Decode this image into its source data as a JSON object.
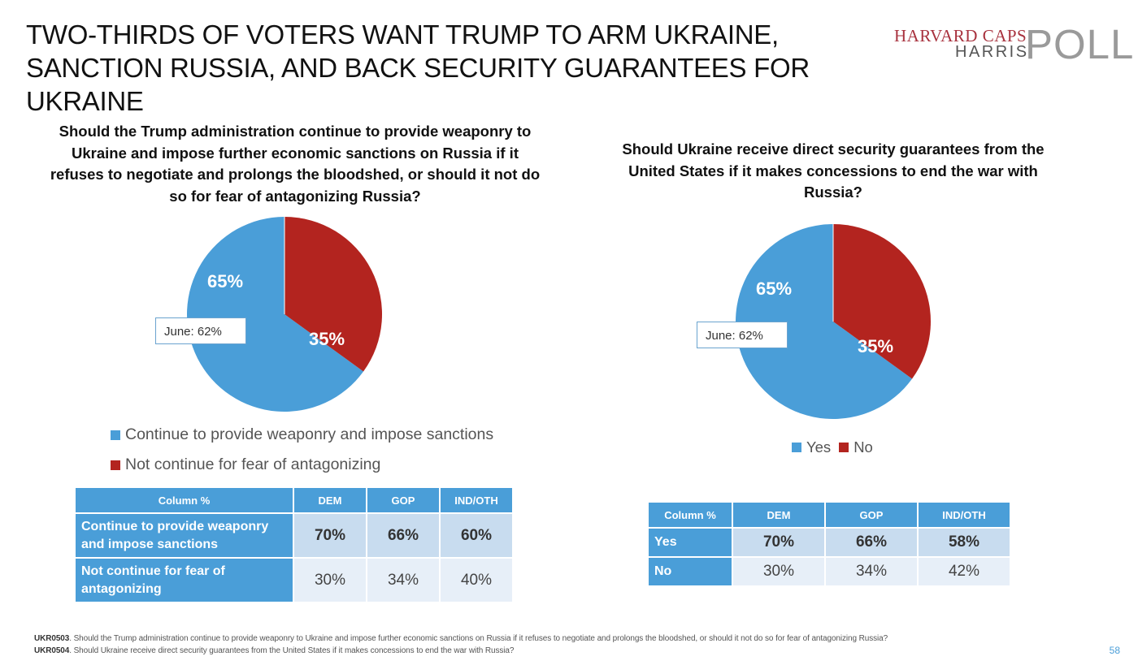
{
  "title": "TWO-THIRDS OF VOTERS WANT TRUMP TO ARM UKRAINE, SANCTION RUSSIA, AND BACK SECURITY GUARANTEES FOR UKRAINE",
  "logo": {
    "line1": "HARVARD CAPS",
    "line2": "HARRIS",
    "line3": "POLL"
  },
  "colors": {
    "blue": "#4a9ed8",
    "red": "#b3241f"
  },
  "chart_data": [
    {
      "type": "pie",
      "title": "Should the Trump administration continue to provide weaponry to Ukraine and impose further economic sanctions on Russia if it refuses to negotiate and prolongs the bloodshed, or should it not do so for fear of antagonizing Russia?",
      "slices": [
        {
          "label": "Continue to provide weaponry and impose sanctions",
          "value": 65,
          "display": "65%",
          "color": "#4a9ed8"
        },
        {
          "label": "Not continue for fear of antagonizing",
          "value": 35,
          "display": "35%",
          "color": "#b3241f"
        }
      ],
      "annotation": "June: 62%",
      "legend": [
        "Continue to provide weaponry and impose sanctions",
        "Not continue for fear of antagonizing"
      ]
    },
    {
      "type": "pie",
      "title": "Should Ukraine receive direct security guarantees from the United States if it makes concessions to end the war with Russia?",
      "slices": [
        {
          "label": "Yes",
          "value": 65,
          "display": "65%",
          "color": "#4a9ed8"
        },
        {
          "label": "No",
          "value": 35,
          "display": "35%",
          "color": "#b3241f"
        }
      ],
      "annotation": "June: 62%",
      "legend": [
        "Yes",
        "No"
      ]
    }
  ],
  "tables": [
    {
      "headers": [
        "Column %",
        "DEM",
        "GOP",
        "IND/OTH"
      ],
      "rows": [
        {
          "label": "Continue to provide weaponry and impose sanctions",
          "values": [
            "70%",
            "66%",
            "60%"
          ]
        },
        {
          "label": "Not continue for fear of antagonizing",
          "values": [
            "30%",
            "34%",
            "40%"
          ]
        }
      ]
    },
    {
      "headers": [
        "Column %",
        "DEM",
        "GOP",
        "IND/OTH"
      ],
      "rows": [
        {
          "label": "Yes",
          "values": [
            "70%",
            "66%",
            "58%"
          ]
        },
        {
          "label": "No",
          "values": [
            "30%",
            "34%",
            "42%"
          ]
        }
      ]
    }
  ],
  "footnotes": [
    {
      "code": "UKR0503",
      "text": ". Should the Trump administration continue to provide weaponry to Ukraine and impose further economic sanctions on Russia if it refuses to negotiate and prolongs the bloodshed, or should it not do so for fear of antagonizing Russia?"
    },
    {
      "code": "UKR0504",
      "text": ". Should Ukraine receive direct security guarantees from the United States if it makes concessions to end the war with Russia?"
    }
  ],
  "page_number": "58"
}
